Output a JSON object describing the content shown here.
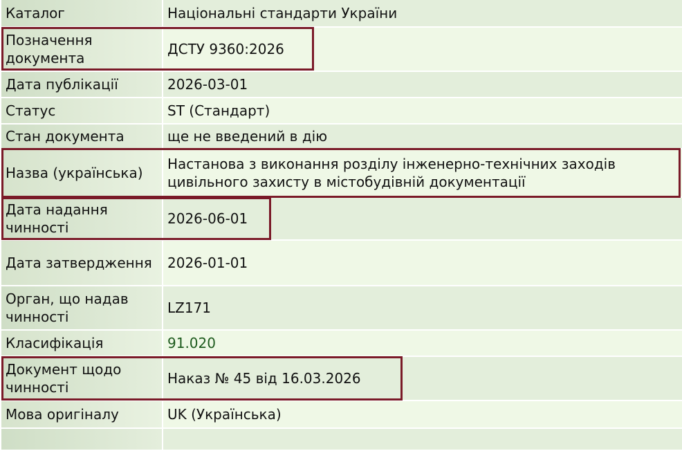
{
  "rows": [
    {
      "label": "Каталог",
      "value": "Національні стандарти України"
    },
    {
      "label": "Позначення документа",
      "value": "ДСТУ 9360:2026",
      "highlighted": true
    },
    {
      "label": "Дата публікації",
      "value": "2026-03-01"
    },
    {
      "label": "Статус",
      "value": "ST (Стандарт)"
    },
    {
      "label": "Стан документа",
      "value": "ще не введений в дію"
    },
    {
      "label": "Назва (українська)",
      "value": "Настанова з виконання розділу інженерно-технічних заходів цивільного захисту в містобудівній документації",
      "highlighted": true
    },
    {
      "label": "Дата надання чинності",
      "value": "2026-06-01",
      "highlighted": true
    },
    {
      "label": "Дата затвердження",
      "value": "2026-01-01"
    },
    {
      "label": "Орган, що надав чинності",
      "value": "LZ171"
    },
    {
      "label": "Класифікація",
      "value": "91.020",
      "link": true
    },
    {
      "label": "Документ щодо чинності",
      "value": "Наказ № 45 від 16.03.2026",
      "highlighted": true
    },
    {
      "label": "Мова оригіналу",
      "value": "UK (Українська)"
    }
  ],
  "colors": {
    "highlight_border": "#7a1a28",
    "link": "#1d5a1d"
  }
}
